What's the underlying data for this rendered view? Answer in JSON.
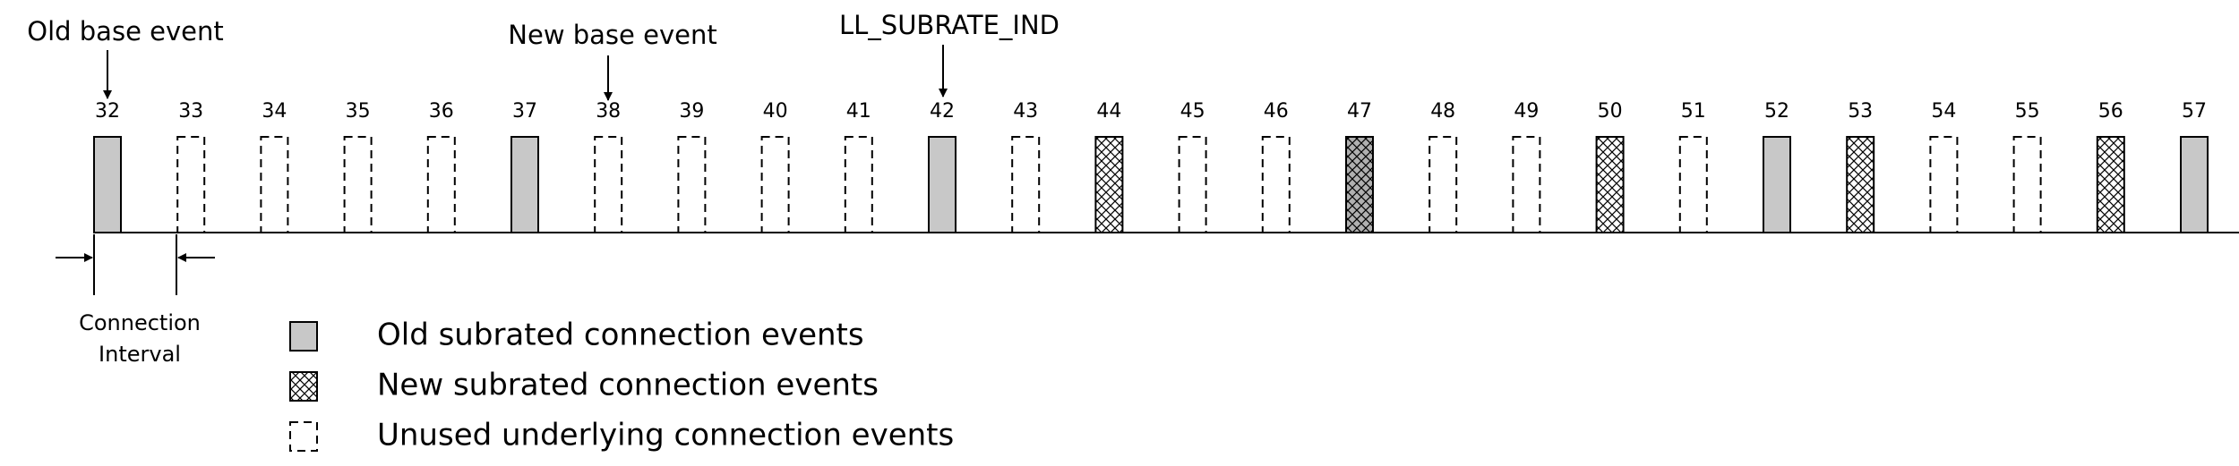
{
  "annotations": {
    "old_base": "Old base event",
    "new_base": "New base event",
    "subrate_ind": "LL_SUBRATE_IND"
  },
  "events": [
    {
      "number": 32,
      "style": "old"
    },
    {
      "number": 33,
      "style": "unused"
    },
    {
      "number": 34,
      "style": "unused"
    },
    {
      "number": 35,
      "style": "unused"
    },
    {
      "number": 36,
      "style": "unused"
    },
    {
      "number": 37,
      "style": "old"
    },
    {
      "number": 38,
      "style": "unused"
    },
    {
      "number": 39,
      "style": "unused"
    },
    {
      "number": 40,
      "style": "unused"
    },
    {
      "number": 41,
      "style": "unused"
    },
    {
      "number": 42,
      "style": "old"
    },
    {
      "number": 43,
      "style": "unused"
    },
    {
      "number": 44,
      "style": "new"
    },
    {
      "number": 45,
      "style": "unused"
    },
    {
      "number": 46,
      "style": "unused"
    },
    {
      "number": 47,
      "style": "both"
    },
    {
      "number": 48,
      "style": "unused"
    },
    {
      "number": 49,
      "style": "unused"
    },
    {
      "number": 50,
      "style": "new"
    },
    {
      "number": 51,
      "style": "unused"
    },
    {
      "number": 52,
      "style": "old"
    },
    {
      "number": 53,
      "style": "new"
    },
    {
      "number": 54,
      "style": "unused"
    },
    {
      "number": 55,
      "style": "unused"
    },
    {
      "number": 56,
      "style": "new"
    },
    {
      "number": 57,
      "style": "old"
    }
  ],
  "interval_label": [
    "Connection",
    "Interval"
  ],
  "legend": [
    {
      "style": "old",
      "text": "Old subrated connection events"
    },
    {
      "style": "new",
      "text": "New subrated connection events"
    },
    {
      "style": "unused",
      "text": "Unused underlying connection events"
    }
  ]
}
